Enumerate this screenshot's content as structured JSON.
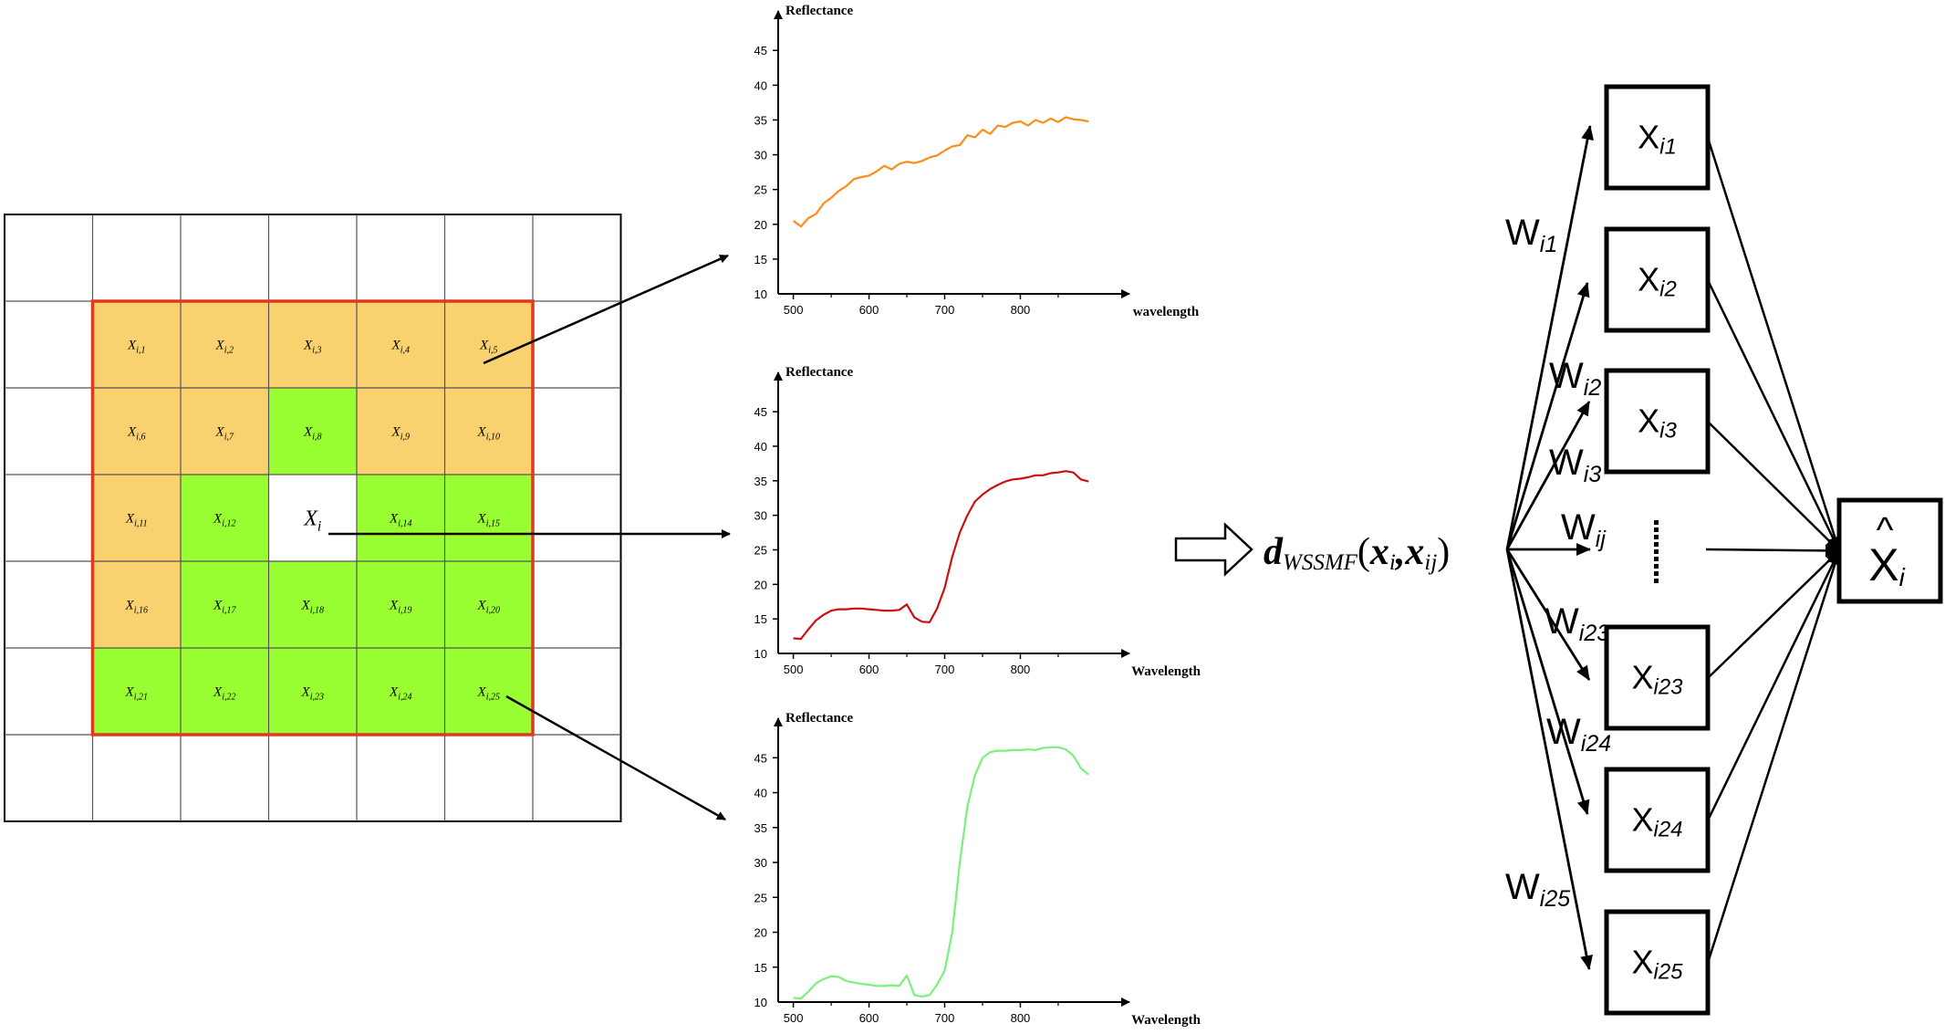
{
  "grid": {
    "center_label": "X",
    "center_sub": "i",
    "cell_prefix": "X",
    "cells": [
      {
        "sub": "i,1",
        "color": "#F9D16E"
      },
      {
        "sub": "i,2",
        "color": "#F9D16E"
      },
      {
        "sub": "i,3",
        "color": "#F9D16E"
      },
      {
        "sub": "i,4",
        "color": "#F9D16E"
      },
      {
        "sub": "i,5",
        "color": "#F9D16E"
      },
      {
        "sub": "i,6",
        "color": "#F9D16E"
      },
      {
        "sub": "i,7",
        "color": "#F9D16E"
      },
      {
        "sub": "i,8",
        "color": "#99FF33"
      },
      {
        "sub": "i,9",
        "color": "#F9D16E"
      },
      {
        "sub": "i,10",
        "color": "#F9D16E"
      },
      {
        "sub": "i,11",
        "color": "#F9D16E"
      },
      {
        "sub": "i,12",
        "color": "#99FF33"
      },
      {
        "sub": "",
        "color": "#FFFFFF",
        "center": true
      },
      {
        "sub": "i,14",
        "color": "#99FF33"
      },
      {
        "sub": "i,15",
        "color": "#99FF33"
      },
      {
        "sub": "i,16",
        "color": "#F9D16E"
      },
      {
        "sub": "i,17",
        "color": "#99FF33"
      },
      {
        "sub": "i,18",
        "color": "#99FF33"
      },
      {
        "sub": "i,19",
        "color": "#99FF33"
      },
      {
        "sub": "i,20",
        "color": "#99FF33"
      },
      {
        "sub": "i,21",
        "color": "#99FF33"
      },
      {
        "sub": "i,22",
        "color": "#99FF33"
      },
      {
        "sub": "i,23",
        "color": "#99FF33"
      },
      {
        "sub": "i,24",
        "color": "#99FF33"
      },
      {
        "sub": "i,25",
        "color": "#99FF33"
      }
    ],
    "border_color": "#E03A1E"
  },
  "chart_data": [
    {
      "type": "line",
      "ylabel": "Reflectance",
      "xlabel": "wavelength",
      "color": "#FF8C1A",
      "xticks": [
        500,
        600,
        700,
        800
      ],
      "yticks": [
        10,
        15,
        20,
        25,
        30,
        35,
        40,
        45
      ],
      "xlim": [
        480,
        920
      ],
      "ylim": [
        10,
        47
      ],
      "x": [
        500,
        510,
        520,
        530,
        540,
        550,
        560,
        570,
        580,
        590,
        600,
        610,
        620,
        630,
        640,
        650,
        660,
        670,
        680,
        690,
        700,
        710,
        720,
        730,
        740,
        750,
        760,
        770,
        780,
        790,
        800,
        810,
        820,
        830,
        840,
        850,
        860,
        870,
        880,
        890
      ],
      "y": [
        20.5,
        19.7,
        20.9,
        21.5,
        23.0,
        23.8,
        24.8,
        25.5,
        26.5,
        26.8,
        27.0,
        27.6,
        28.4,
        27.9,
        28.7,
        29.0,
        28.8,
        29.1,
        29.6,
        29.9,
        30.6,
        31.2,
        31.4,
        32.8,
        32.5,
        33.6,
        33.0,
        34.2,
        34.0,
        34.6,
        34.8,
        34.2,
        35.0,
        34.6,
        35.2,
        34.7,
        35.4,
        35.1,
        35.0,
        34.8
      ]
    },
    {
      "type": "line",
      "ylabel": "Reflectance",
      "xlabel": "Wavelength",
      "color": "#CC1010",
      "xticks": [
        500,
        600,
        700,
        800
      ],
      "yticks": [
        10,
        15,
        20,
        25,
        30,
        35,
        40,
        45
      ],
      "xlim": [
        480,
        920
      ],
      "ylim": [
        10,
        47
      ],
      "x": [
        500,
        510,
        520,
        530,
        540,
        550,
        560,
        570,
        580,
        590,
        600,
        610,
        620,
        630,
        640,
        650,
        660,
        670,
        680,
        690,
        700,
        710,
        720,
        730,
        740,
        750,
        760,
        770,
        780,
        790,
        800,
        810,
        820,
        830,
        840,
        850,
        860,
        870,
        880,
        890
      ],
      "y": [
        12.2,
        12.1,
        13.5,
        14.8,
        15.6,
        16.2,
        16.4,
        16.4,
        16.5,
        16.5,
        16.4,
        16.3,
        16.2,
        16.2,
        16.3,
        17.1,
        15.2,
        14.6,
        14.5,
        16.5,
        19.5,
        24.0,
        27.5,
        30.0,
        32.0,
        33.0,
        33.8,
        34.4,
        34.9,
        35.2,
        35.3,
        35.5,
        35.8,
        35.8,
        36.1,
        36.2,
        36.4,
        36.2,
        35.2,
        34.9
      ]
    },
    {
      "type": "line",
      "ylabel": "Reflectance",
      "xlabel": "Wavelength",
      "color": "#7CF07C",
      "xticks": [
        500,
        600,
        700,
        800
      ],
      "yticks": [
        10,
        15,
        20,
        25,
        30,
        35,
        40,
        45
      ],
      "xlim": [
        480,
        920
      ],
      "ylim": [
        10,
        47
      ],
      "x": [
        500,
        510,
        520,
        530,
        540,
        550,
        560,
        570,
        580,
        590,
        600,
        610,
        620,
        630,
        640,
        650,
        660,
        670,
        680,
        690,
        700,
        710,
        720,
        730,
        740,
        750,
        760,
        770,
        780,
        790,
        800,
        810,
        820,
        830,
        840,
        850,
        860,
        870,
        880,
        890
      ],
      "y": [
        10.6,
        10.5,
        11.5,
        12.7,
        13.3,
        13.7,
        13.6,
        13.0,
        12.8,
        12.6,
        12.5,
        12.3,
        12.3,
        12.4,
        12.3,
        13.8,
        11.0,
        10.8,
        11.0,
        12.5,
        14.5,
        20.0,
        30.0,
        38.0,
        42.5,
        45.0,
        45.8,
        46.0,
        46.0,
        46.1,
        46.1,
        46.2,
        46.1,
        46.4,
        46.5,
        46.5,
        46.2,
        45.3,
        43.5,
        42.6
      ]
    }
  ],
  "distance": {
    "main": "d",
    "sub": "WSSMF",
    "open": "(",
    "arg1": "x",
    "arg1_sub": "i",
    "comma": ",",
    "arg2": "x",
    "arg2_sub": "ij",
    "close": ")"
  },
  "network": {
    "nodes": [
      {
        "base": "X",
        "sub": "i1"
      },
      {
        "base": "X",
        "sub": "i2"
      },
      {
        "base": "X",
        "sub": "i3"
      },
      {
        "base": "X",
        "sub": "i23"
      },
      {
        "base": "X",
        "sub": "i24"
      },
      {
        "base": "X",
        "sub": "i25"
      }
    ],
    "weights": [
      {
        "base": "W",
        "sub": "i1"
      },
      {
        "base": "W",
        "sub": "i2"
      },
      {
        "base": "W",
        "sub": "i3"
      },
      {
        "base": "W",
        "sub": "ij"
      },
      {
        "base": "W",
        "sub": "i23"
      },
      {
        "base": "W",
        "sub": "i24"
      },
      {
        "base": "W",
        "sub": "i25"
      }
    ],
    "output": {
      "base": "X",
      "sub": "i",
      "hat": "^"
    }
  }
}
